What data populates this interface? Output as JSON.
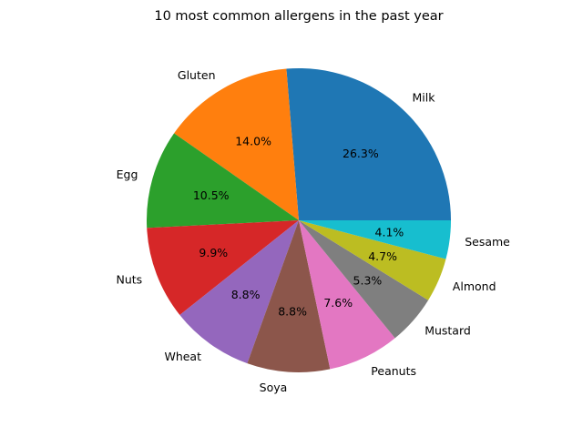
{
  "chart_data": {
    "type": "pie",
    "title": "10 most common allergens in the past year",
    "categories": [
      "Milk",
      "Gluten",
      "Egg",
      "Nuts",
      "Wheat",
      "Soya",
      "Peanuts",
      "Mustard",
      "Almond",
      "Sesame"
    ],
    "values": [
      26.3,
      14.0,
      10.5,
      9.9,
      8.8,
      8.8,
      7.6,
      5.3,
      4.7,
      4.1
    ],
    "value_labels": [
      "26.3%",
      "14.0%",
      "10.5%",
      "9.9%",
      "8.8%",
      "8.8%",
      "7.6%",
      "5.3%",
      "4.7%",
      "4.1%"
    ],
    "colors": [
      "#1f77b4",
      "#ff7f0e",
      "#2ca02c",
      "#d62728",
      "#9467bd",
      "#8c564b",
      "#e377c2",
      "#7f7f7f",
      "#bcbd22",
      "#17becf"
    ],
    "start_angle_deg": 0,
    "direction": "counterclockwise",
    "legend": "none"
  }
}
